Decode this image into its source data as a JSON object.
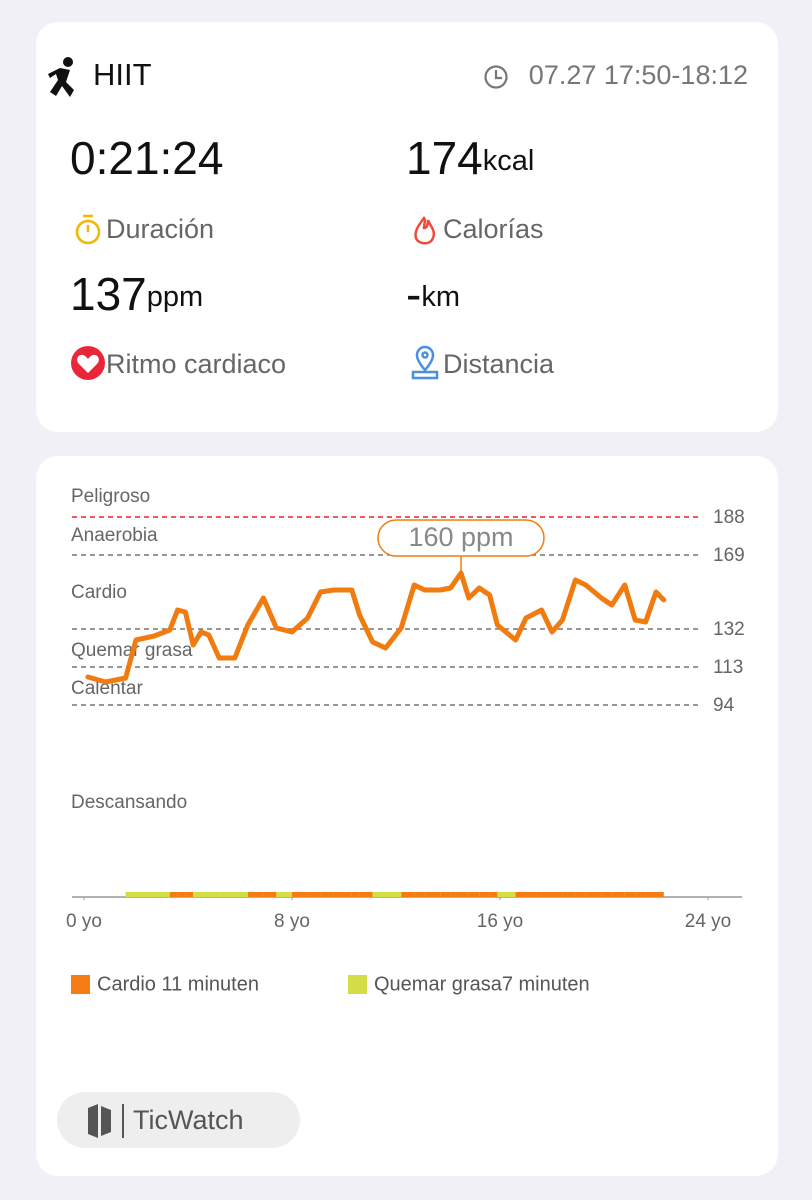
{
  "header": {
    "activity": "HIIT",
    "time": "07.27 17:50-18:12"
  },
  "stats": [
    {
      "value": "0:21:24",
      "label": "Duración"
    },
    {
      "value": 174,
      "unit": "kcal",
      "label": "Calorías"
    },
    {
      "value": 137,
      "unit": "ppm",
      "label": "Ritmo cardiaco"
    },
    {
      "value": "-",
      "unit": "km",
      "label": "Distancia"
    }
  ],
  "chart_data": {
    "type": "line",
    "x": [
      0.15,
      0.83,
      1.6,
      2.0,
      2.7,
      3.3,
      3.6,
      3.9,
      4.2,
      4.5,
      4.8,
      5.2,
      5.8,
      6.3,
      6.9,
      7.4,
      8.0,
      8.6,
      9.1,
      9.6,
      10.3,
      10.6,
      11.1,
      11.6,
      12.2,
      12.7,
      13.1,
      13.7,
      14.1,
      14.5,
      14.8,
      15.2,
      15.6,
      15.9,
      16.6,
      17.0,
      17.6,
      18.0,
      18.4,
      18.9,
      19.3,
      19.9,
      20.3,
      20.8,
      21.2,
      21.6,
      22.0,
      22.3
    ],
    "values": [
      108,
      105.5,
      107.5,
      126.5,
      128.5,
      131.5,
      141.5,
      140.5,
      124,
      130.5,
      129,
      117.5,
      117.5,
      134,
      147.5,
      132.5,
      130.5,
      137.5,
      150.5,
      151.5,
      151.5,
      139,
      125.5,
      122.5,
      132.5,
      154,
      151.5,
      151.5,
      152.5,
      160,
      147.5,
      152.5,
      149,
      134,
      126.5,
      137.5,
      141.5,
      130.5,
      136.5,
      156.5,
      154,
      147.5,
      144,
      154,
      136.5,
      135.5,
      150.5,
      146.5
    ],
    "color": "#f27b0f",
    "xlim": [
      0,
      24
    ],
    "xticks": [
      {
        "value": 0,
        "label": "0 yo"
      },
      {
        "value": 8,
        "label": "8 yo"
      },
      {
        "value": 16,
        "label": "16 yo"
      },
      {
        "value": 24,
        "label": "24 yo"
      }
    ],
    "ylim": [
      0,
      188
    ],
    "thresholds": [
      188,
      169,
      132,
      113,
      94
    ],
    "zones": [
      "Peligroso",
      "Anaerobia",
      "Cardio",
      "Quemar grasa",
      "Calentar",
      "Descansando"
    ],
    "danger_color": "#e8202a",
    "peak": {
      "value": 160,
      "label": "160 ppm"
    },
    "legend": [
      {
        "name": "Cardio 11 minuten",
        "color": "#f57c12"
      },
      {
        "name": "Quemar grasa7 minuten",
        "color": "#d3dd45"
      }
    ]
  },
  "footer": {
    "brand": "TicWatch"
  }
}
